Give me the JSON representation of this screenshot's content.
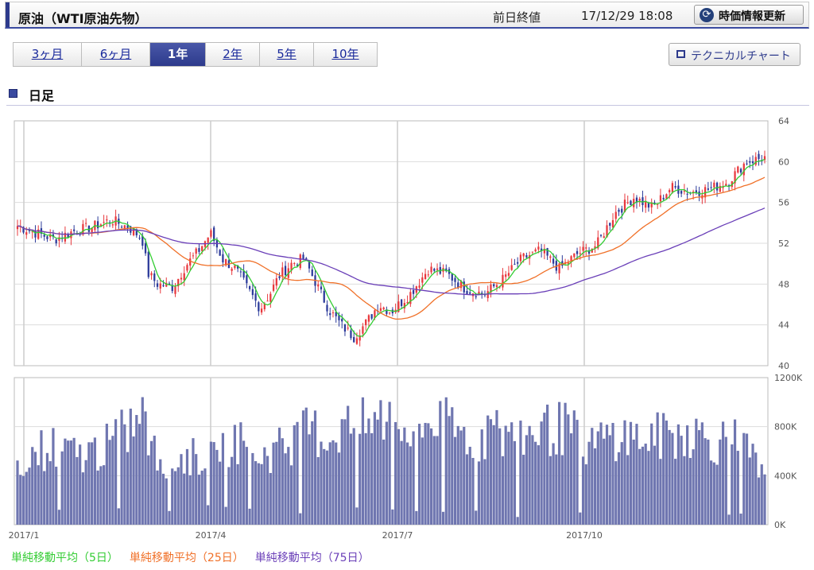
{
  "header": {
    "title": "原油（WTI原油先物）",
    "prev_close_label": "前日終値",
    "timestamp": "17/12/29 18:08",
    "refresh_label": "時価情報更新"
  },
  "period_tabs": [
    {
      "label": "3ヶ月",
      "active": false
    },
    {
      "label": "6ヶ月",
      "active": false
    },
    {
      "label": "1年",
      "active": true
    },
    {
      "label": "2年",
      "active": false
    },
    {
      "label": "5年",
      "active": false
    },
    {
      "label": "10年",
      "active": false
    }
  ],
  "technical_button_label": "テクニカルチャート",
  "section_title": "日足",
  "colors": {
    "accent": "#2d3a8c",
    "bullish": "#e8383d",
    "bearish": "#2b3a9a",
    "ma5": "#33cc33",
    "ma25": "#f07028",
    "ma75": "#6a3fb8",
    "volume": "#6f76b0"
  },
  "chart_data": [
    {
      "type": "candlestick",
      "title": "",
      "x_ticks": [
        "2017/1",
        "2017/4",
        "2017/7",
        "2017/10"
      ],
      "x_tick_months": [
        0,
        3,
        6,
        9
      ],
      "ylim": [
        40,
        64
      ],
      "y_ticks": [
        "40",
        "44",
        "48",
        "52",
        "56",
        "60",
        "64"
      ],
      "grid": true,
      "close_anchors": {
        "month_index": [
          0,
          0.3,
          0.6,
          0.9,
          1.2,
          1.5,
          1.8,
          2.0,
          2.1,
          2.25,
          2.5,
          2.7,
          2.9,
          3.1,
          3.3,
          3.5,
          3.7,
          3.9,
          4.05,
          4.2,
          4.4,
          4.6,
          4.8,
          5.0,
          5.2,
          5.4,
          5.6,
          5.8,
          6.0,
          6.3,
          6.6,
          6.9,
          7.2,
          7.5,
          7.8,
          8.1,
          8.4,
          8.7,
          9.0,
          9.3,
          9.6,
          9.9,
          10.2,
          10.5,
          10.8,
          11.1,
          11.4,
          11.7,
          12.0
        ],
        "close": [
          53.7,
          53.0,
          52.4,
          53.2,
          53.6,
          54.3,
          53.5,
          52.5,
          49.0,
          48.0,
          47.7,
          49.8,
          51.2,
          53.0,
          50.4,
          49.5,
          47.5,
          45.6,
          47.0,
          48.8,
          50.0,
          50.5,
          48.0,
          45.5,
          44.0,
          42.8,
          44.2,
          46.0,
          45.3,
          47.0,
          49.5,
          49.0,
          47.5,
          47.0,
          48.5,
          50.5,
          51.3,
          49.5,
          51.0,
          51.8,
          55.0,
          56.5,
          55.5,
          57.5,
          57.0,
          57.3,
          58.0,
          60.0,
          60.4
        ]
      },
      "series": [
        {
          "name": "単純移動平均（5日）",
          "type": "line",
          "color": "#33cc33"
        },
        {
          "name": "単純移動平均（25日）",
          "type": "line",
          "color": "#f07028"
        },
        {
          "name": "単純移動平均（75日）",
          "type": "line",
          "color": "#6a3fb8"
        }
      ]
    },
    {
      "type": "bar",
      "title": "",
      "ylim": [
        0,
        1200000
      ],
      "y_ticks": [
        "0K",
        "400K",
        "800K",
        "1200K"
      ],
      "grid": true,
      "volume_anchors": {
        "month_index": [
          0,
          0.5,
          1.0,
          1.5,
          2.0,
          2.3,
          2.6,
          3.0,
          3.5,
          3.9,
          4.3,
          4.7,
          5.0,
          5.3,
          5.6,
          6.0,
          6.3,
          6.6,
          7.0,
          7.3,
          7.6,
          8.0,
          8.4,
          8.8,
          9.2,
          9.6,
          10.0,
          10.4,
          10.8,
          11.2,
          11.6,
          12.0
        ],
        "volume": [
          520000,
          640000,
          560000,
          650000,
          880000,
          430000,
          540000,
          560000,
          700000,
          560000,
          640000,
          780000,
          700000,
          820000,
          800000,
          900000,
          700000,
          860000,
          780000,
          700000,
          760000,
          700000,
          780000,
          780000,
          640000,
          740000,
          700000,
          720000,
          760000,
          680000,
          700000,
          360000
        ]
      }
    }
  ],
  "legend": [
    {
      "label": "単純移動平均（5日）",
      "color": "#33cc33"
    },
    {
      "label": "単純移動平均（25日）",
      "color": "#f07028"
    },
    {
      "label": "単純移動平均（75日）",
      "color": "#6a3fb8"
    }
  ]
}
